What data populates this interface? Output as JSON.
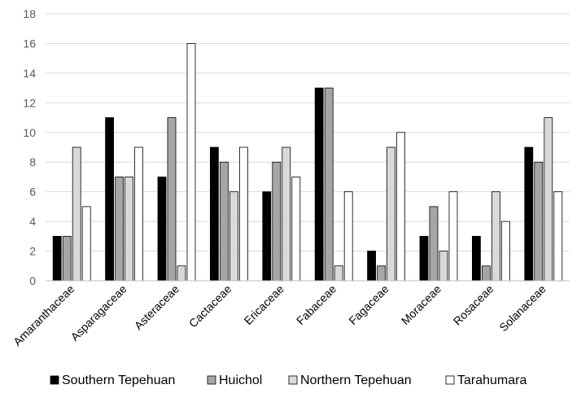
{
  "chart_data": {
    "type": "bar",
    "title": "",
    "xlabel": "",
    "ylabel": "",
    "ylim": [
      0,
      18
    ],
    "yticks": [
      0,
      2,
      4,
      6,
      8,
      10,
      12,
      14,
      16,
      18
    ],
    "grid": true,
    "legend_position": "bottom",
    "categories": [
      "Amaranthaceae",
      "Asparagaceae",
      "Asteraceae",
      "Cactaceae",
      "Ericaceae",
      "Fabaceae",
      "Fagaceae",
      "Moraceae",
      "Rosaceae",
      "Solanaceae"
    ],
    "series": [
      {
        "name": "Southern Tepehuan",
        "color": "#000000",
        "values": [
          3,
          11,
          7,
          9,
          6,
          13,
          2,
          3,
          3,
          9
        ]
      },
      {
        "name": "Huichol",
        "color": "#a6a6a6",
        "values": [
          3,
          7,
          11,
          8,
          8,
          13,
          1,
          5,
          1,
          8
        ]
      },
      {
        "name": "Northern Tepehuan",
        "color": "#d9d9d9",
        "values": [
          9,
          7,
          1,
          6,
          9,
          1,
          9,
          2,
          6,
          11
        ]
      },
      {
        "name": "Tarahumara",
        "color": "#ffffff",
        "values": [
          5,
          9,
          16,
          9,
          7,
          6,
          10,
          6,
          4,
          6
        ]
      }
    ]
  }
}
